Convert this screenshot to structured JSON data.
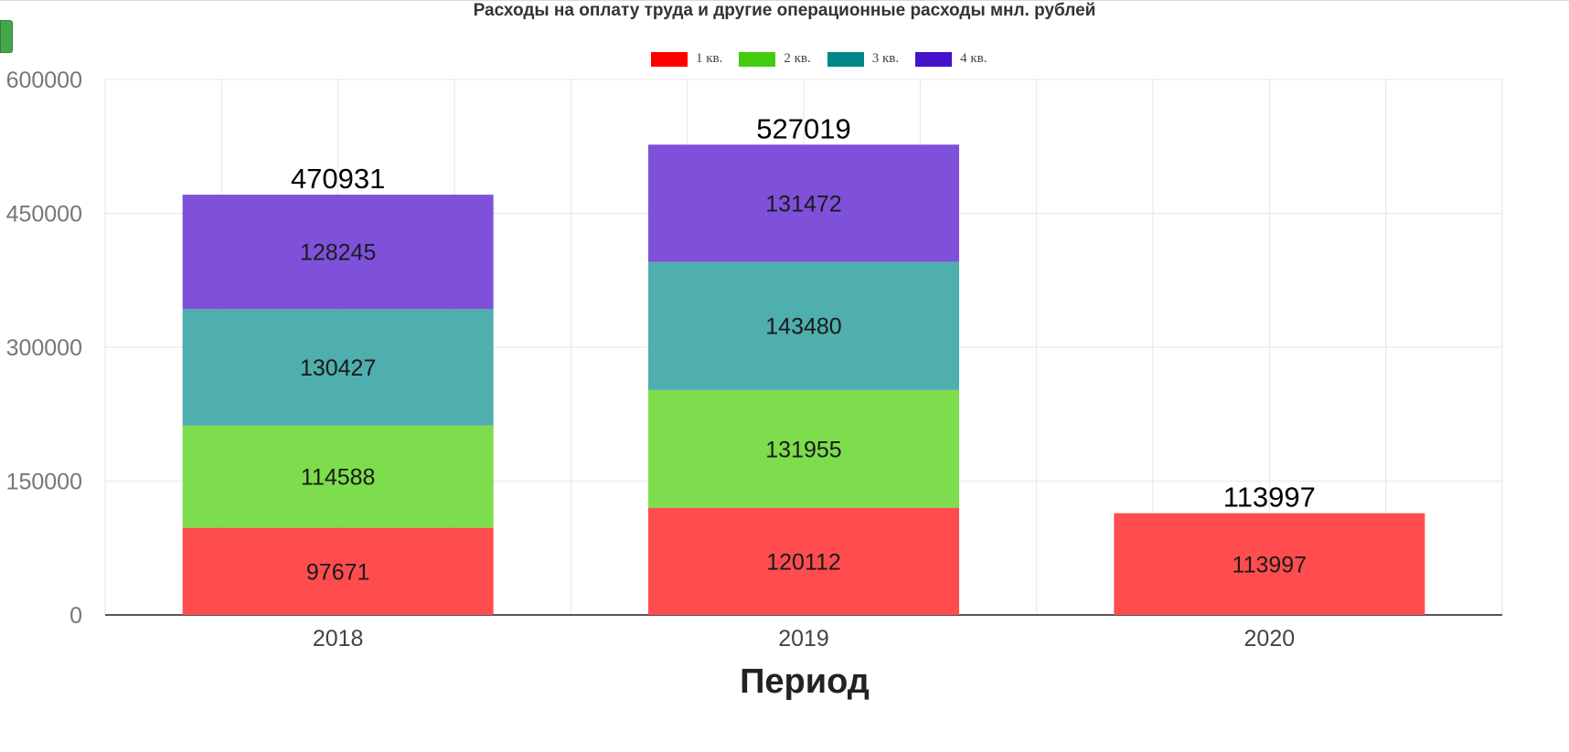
{
  "chart_data": {
    "type": "bar",
    "stacked": true,
    "title": "Расходы на оплату труда и другие операционные расходы мнл. рублей",
    "xlabel": "Период",
    "ylabel": "",
    "categories": [
      "2018",
      "2019",
      "2020"
    ],
    "series": [
      {
        "name": "1 кв.",
        "values": [
          97671,
          120112,
          113997
        ],
        "color": "#ff4d4f",
        "legend_color": "#ff0000"
      },
      {
        "name": "2 кв.",
        "values": [
          114588,
          131955,
          null
        ],
        "color": "#7ddd4c",
        "legend_color": "#44cc11"
      },
      {
        "name": "3 кв.",
        "values": [
          130427,
          143480,
          null
        ],
        "color": "#4faeae",
        "legend_color": "#008888"
      },
      {
        "name": "4 кв.",
        "values": [
          128245,
          131472,
          null
        ],
        "color": "#7f51db",
        "legend_color": "#4411cc"
      }
    ],
    "totals": [
      "470931",
      "527019",
      "113997"
    ],
    "ylim": [
      0,
      600000
    ],
    "yticks": [
      "0",
      "150000",
      "300000",
      "450000",
      "600000"
    ],
    "grid": true,
    "legend_position": "top-center"
  }
}
